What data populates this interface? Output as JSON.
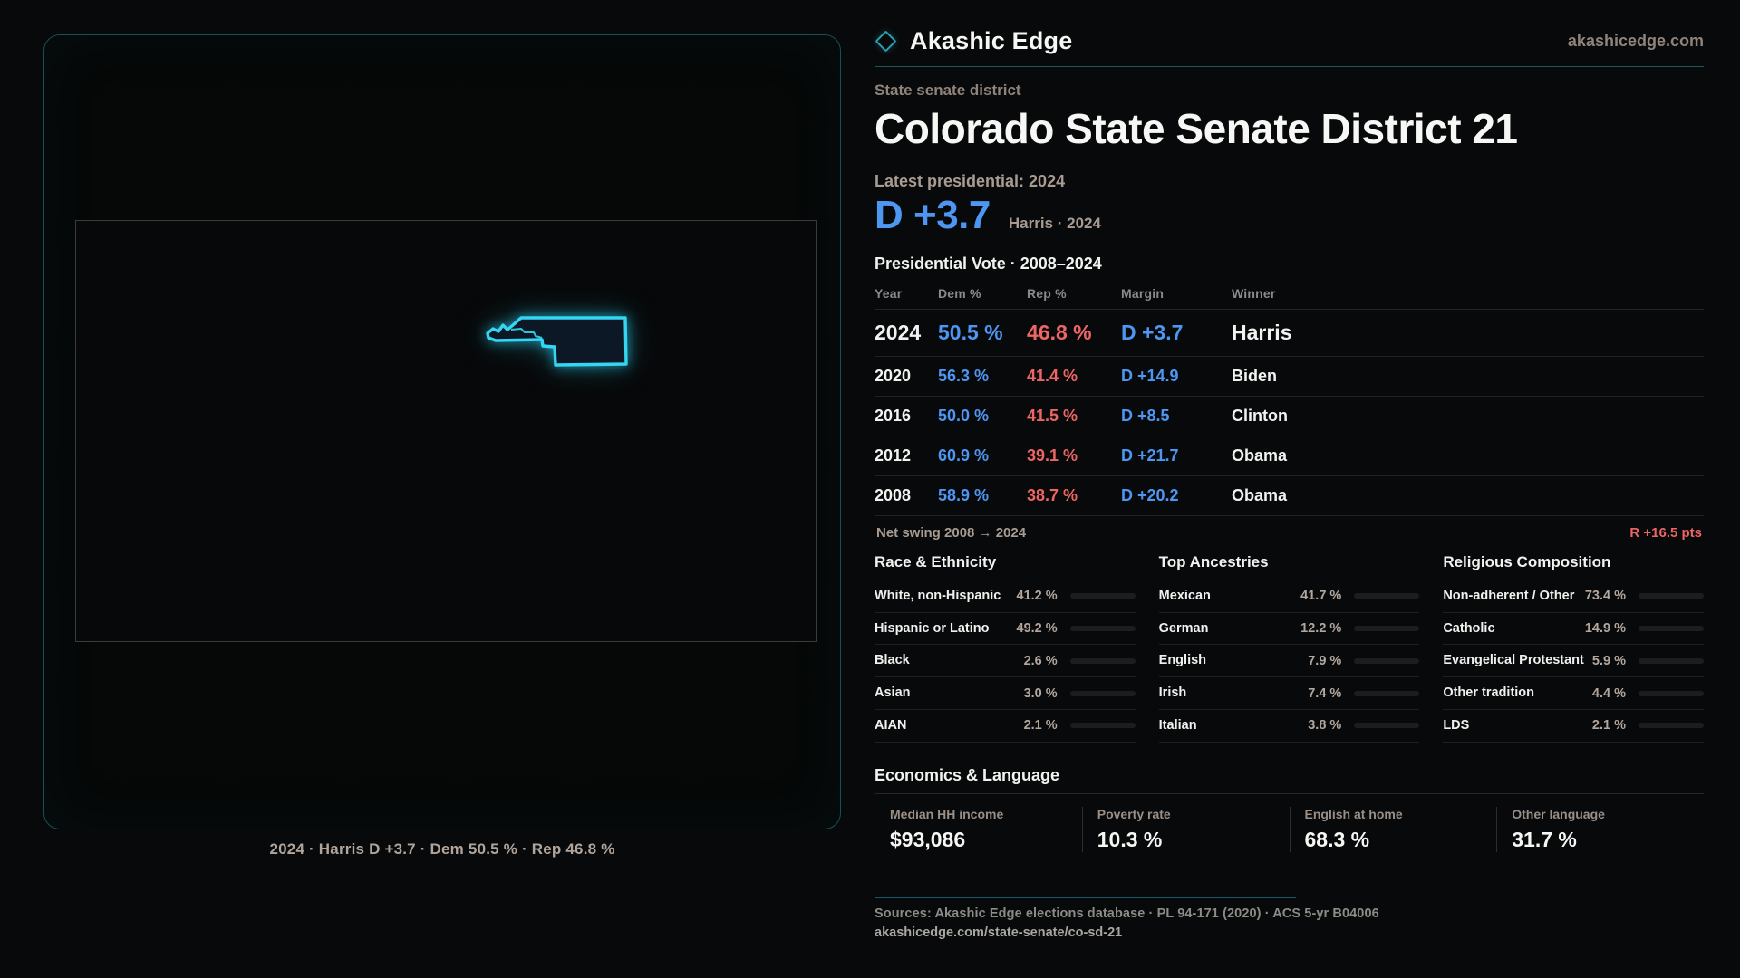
{
  "brand": {
    "name": "Akashic Edge",
    "site": "akashicedge.com",
    "accent": "#2b9fb2"
  },
  "header": {
    "kicker": "State senate district",
    "title": "Colorado State Senate District 21"
  },
  "map": {
    "caption": "2024 · Harris D +3.7 · Dem 50.5 % · Rep 46.8 %",
    "district_outline_color": "#35d6f2"
  },
  "latest": {
    "label": "Latest presidential: 2024",
    "margin": "D +3.7",
    "detail": "Harris · 2024"
  },
  "vote_table": {
    "title": "Presidential Vote · 2008–2024",
    "columns": {
      "year": "Year",
      "dem": "Dem %",
      "rep": "Rep %",
      "margin": "Margin",
      "winner": "Winner"
    },
    "rows": [
      {
        "year": "2024",
        "dem": "50.5 %",
        "rep": "46.8 %",
        "margin": "D +3.7",
        "winner": "Harris"
      },
      {
        "year": "2020",
        "dem": "56.3 %",
        "rep": "41.4 %",
        "margin": "D +14.9",
        "winner": "Biden"
      },
      {
        "year": "2016",
        "dem": "50.0 %",
        "rep": "41.5 %",
        "margin": "D +8.5",
        "winner": "Clinton"
      },
      {
        "year": "2012",
        "dem": "60.9 %",
        "rep": "39.1 %",
        "margin": "D +21.7",
        "winner": "Obama"
      },
      {
        "year": "2008",
        "dem": "58.9 %",
        "rep": "38.7 %",
        "margin": "D +20.2",
        "winner": "Obama"
      }
    ],
    "net_swing_label": "Net swing 2008 → 2024",
    "net_swing_value": "R +16.5 pts",
    "dem_color": "#4d96f2",
    "rep_color": "#ee6565"
  },
  "demographics": {
    "race": {
      "title": "Race & Ethnicity",
      "rows": [
        {
          "label": "White, non-Hispanic",
          "value": "41.2 %",
          "pct": 41.2,
          "color": "#8fa6c2"
        },
        {
          "label": "Hispanic or Latino",
          "value": "49.2 %",
          "pct": 49.2,
          "color": "#e9a21f"
        },
        {
          "label": "Black",
          "value": "2.6 %",
          "pct": 2.6,
          "color": "#8d7bef"
        },
        {
          "label": "Asian",
          "value": "3.0 %",
          "pct": 3.0,
          "color": "#2bab7e"
        },
        {
          "label": "AIAN",
          "value": "2.1 %",
          "pct": 2.1,
          "color": "#c4762c"
        }
      ]
    },
    "ancestry": {
      "title": "Top Ancestries",
      "rows": [
        {
          "label": "Mexican",
          "value": "41.7 %",
          "pct": 41.7,
          "color": "#e9a21f"
        },
        {
          "label": "German",
          "value": "12.2 %",
          "pct": 12.2,
          "color": "#9cb3d6"
        },
        {
          "label": "English",
          "value": "7.9 %",
          "pct": 7.9,
          "color": "#9cb3d6"
        },
        {
          "label": "Irish",
          "value": "7.4 %",
          "pct": 7.4,
          "color": "#9cb3d6"
        },
        {
          "label": "Italian",
          "value": "3.8 %",
          "pct": 3.8,
          "color": "#9cb3d6"
        }
      ]
    },
    "religion": {
      "title": "Religious Composition",
      "rows": [
        {
          "label": "Non-adherent / Other",
          "value": "73.4 %",
          "pct": 73.4,
          "color": "#7f8b9f"
        },
        {
          "label": "Catholic",
          "value": "14.9 %",
          "pct": 14.9,
          "color": "#e2b32e"
        },
        {
          "label": "Evangelical Protestant",
          "value": "5.9 %",
          "pct": 5.9,
          "color": "#e86a6a"
        },
        {
          "label": "Other tradition",
          "value": "4.4 %",
          "pct": 4.4,
          "color": "#8fa3bd"
        },
        {
          "label": "LDS",
          "value": "2.1 %",
          "pct": 2.1,
          "color": "#2aa8a0"
        }
      ]
    }
  },
  "economics": {
    "title": "Economics & Language",
    "stats": [
      {
        "label": "Median HH income",
        "value": "$93,086"
      },
      {
        "label": "Poverty rate",
        "value": "10.3 %"
      },
      {
        "label": "English at home",
        "value": "68.3 %"
      },
      {
        "label": "Other language",
        "value": "31.7 %"
      }
    ]
  },
  "footer": {
    "sources": "Sources: Akashic Edge elections database · PL 94-171 (2020) · ACS 5-yr B04006",
    "permalink": "akashicedge.com/state-senate/co-sd-21"
  }
}
